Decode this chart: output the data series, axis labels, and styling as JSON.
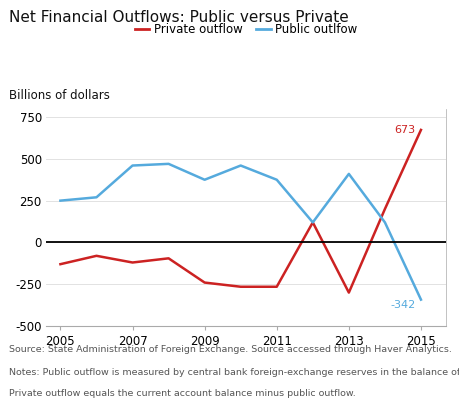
{
  "title": "Net Financial Outflows: Public versus Private",
  "ylabel": "Billions of dollars",
  "source_text": "Source: State Administration of Foreign Exchange. Source accessed through Haver Analytics.",
  "notes_line1": "Notes: Public outflow is measured by central bank foreign-exchange reserves in the balance of payments.",
  "notes_line2": "Private outflow equals the current account balance minus public outflow.",
  "years": [
    2005,
    2006,
    2007,
    2008,
    2009,
    2010,
    2011,
    2012,
    2013,
    2014,
    2015
  ],
  "private_outflow": [
    -130,
    -80,
    -120,
    -95,
    -240,
    -265,
    -265,
    120,
    -300,
    200,
    673
  ],
  "public_outflow": [
    250,
    270,
    460,
    470,
    375,
    460,
    375,
    120,
    410,
    120,
    -342
  ],
  "private_color": "#CC2222",
  "public_color": "#55AADD",
  "private_label": "Private outflow",
  "public_label": "Public outlfow",
  "ylim": [
    -500,
    800
  ],
  "yticks": [
    -500,
    -250,
    0,
    250,
    500,
    750
  ],
  "xticks": [
    2005,
    2007,
    2009,
    2011,
    2013,
    2015
  ],
  "background_color": "#FFFFFF",
  "zero_line_color": "#000000",
  "grid_color": "#DDDDDD",
  "spine_color": "#AAAAAA",
  "text_color": "#555555"
}
